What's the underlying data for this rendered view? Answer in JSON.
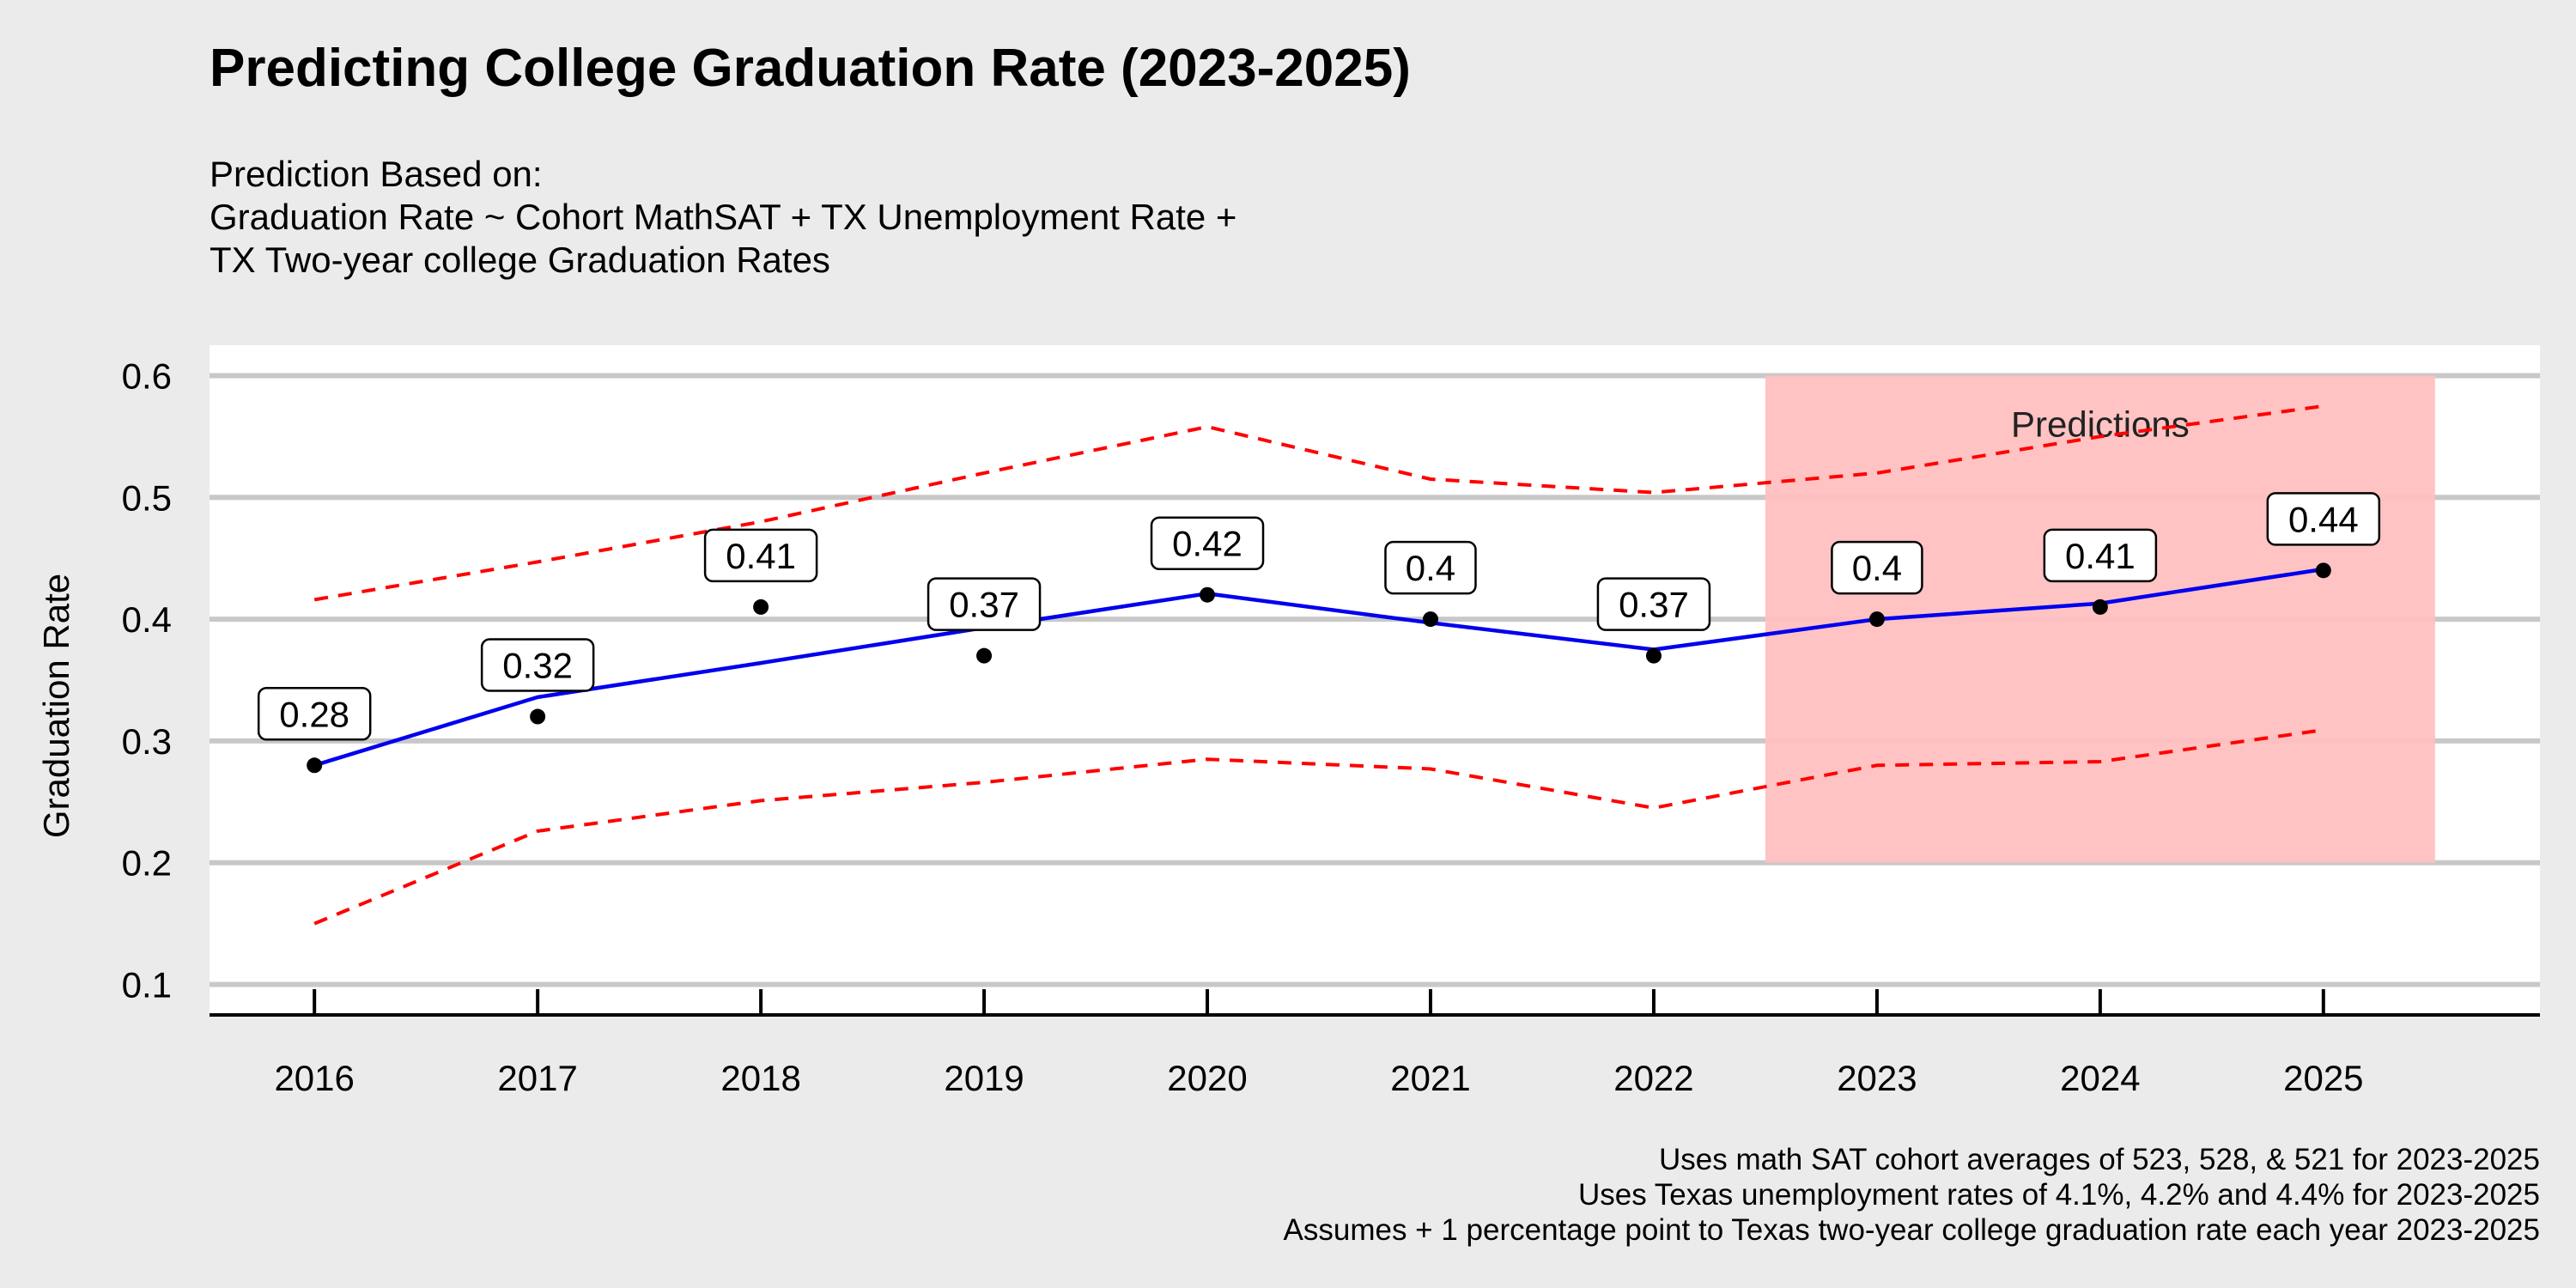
{
  "chart_data": {
    "type": "line",
    "title": "Predicting College Graduation Rate (2023-2025)",
    "subtitle": [
      "Prediction Based on:",
      "Graduation Rate ~ Cohort MathSAT + TX Unemployment Rate +",
      "TX Two-year college Graduation Rates"
    ],
    "ylabel": "Graduation Rate",
    "xlabel": "",
    "x": [
      2016,
      2017,
      2018,
      2019,
      2020,
      2021,
      2022,
      2023,
      2024,
      2025
    ],
    "ylim": [
      0.075,
      0.625
    ],
    "xlim": [
      2015.53,
      2025.97
    ],
    "yticks": [
      0.1,
      0.2,
      0.3,
      0.4,
      0.5,
      0.6
    ],
    "grid": true,
    "observed": [
      0.28,
      0.32,
      0.41,
      0.37,
      0.42,
      0.4,
      0.37,
      0.4,
      0.41,
      0.44
    ],
    "fitted": [
      0.28,
      0.336,
      0.364,
      0.393,
      0.421,
      0.397,
      0.375,
      0.4,
      0.413,
      0.441
    ],
    "lower": [
      0.15,
      0.226,
      0.251,
      0.266,
      0.285,
      0.277,
      0.245,
      0.28,
      0.283,
      0.309
    ],
    "upper": [
      0.416,
      0.447,
      0.48,
      0.52,
      0.558,
      0.515,
      0.504,
      0.52,
      0.55,
      0.575
    ],
    "labels": [
      "0.28",
      "0.32",
      "0.41",
      "0.37",
      "0.42",
      "0.4",
      "0.37",
      "0.4",
      "0.41",
      "0.44"
    ],
    "prediction_region": {
      "x": [
        2022.5,
        2025.5
      ],
      "y": [
        0.2,
        0.6
      ],
      "label": "Predictions",
      "label_x": 2024.0,
      "label_y": 0.55
    },
    "colors": {
      "fitted": "#0000ee",
      "interval": "#ff0000",
      "region": "#ffc0c0",
      "points": "#000000",
      "panel": "#ffffff",
      "background": "#ebebeb",
      "grid": "#c8c8c8"
    }
  },
  "caption": [
    "Uses math SAT cohort averages of 523, 528, & 521 for 2023-2025",
    "Uses Texas unemployment rates of 4.1%, 4.2% and 4.4% for 2023-2025",
    "Assumes + 1 percentage point to Texas two-year college graduation rate each year 2023-2025"
  ]
}
